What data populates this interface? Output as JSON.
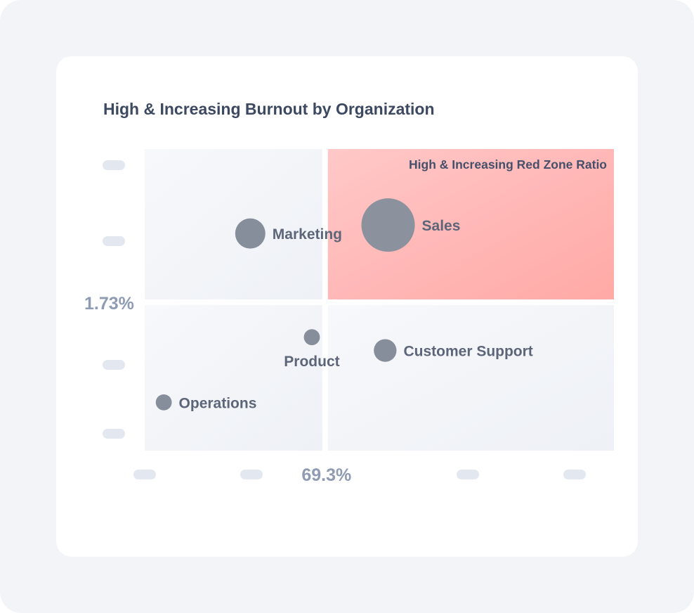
{
  "chart_data": {
    "type": "scatter",
    "title": "High & Increasing Burnout by Organization",
    "highlight_quadrant_label": "High & Increasing Red Zone Ratio",
    "x_threshold_label": "69.3%",
    "y_threshold_label": "1.73%",
    "x_threshold": 69.3,
    "y_threshold": 1.73,
    "xlim": [
      57,
      89
    ],
    "ylim": [
      0.5,
      3.0
    ],
    "tick_labels_visible": false,
    "grid": false,
    "colors": {
      "bubble": "#868e9c",
      "highlight_start": "#ffc8c8",
      "highlight_end": "#ffa9a6",
      "quadrant": "#f3f5f8",
      "label": "#5d6679",
      "threshold_label": "#8e9bb2",
      "tick_placeholder": "#e3e8f0"
    },
    "points": [
      {
        "name": "Sales",
        "x": 73.6,
        "y": 2.37,
        "size": 5.0
      },
      {
        "name": "Marketing",
        "x": 64.2,
        "y": 2.3,
        "size": 1.6
      },
      {
        "name": "Customer Support",
        "x": 73.4,
        "y": 1.33,
        "size": 0.9
      },
      {
        "name": "Product",
        "x": 68.4,
        "y": 1.44,
        "size": 0.45
      },
      {
        "name": "Operations",
        "x": 58.3,
        "y": 0.9,
        "size": 0.45
      }
    ]
  }
}
